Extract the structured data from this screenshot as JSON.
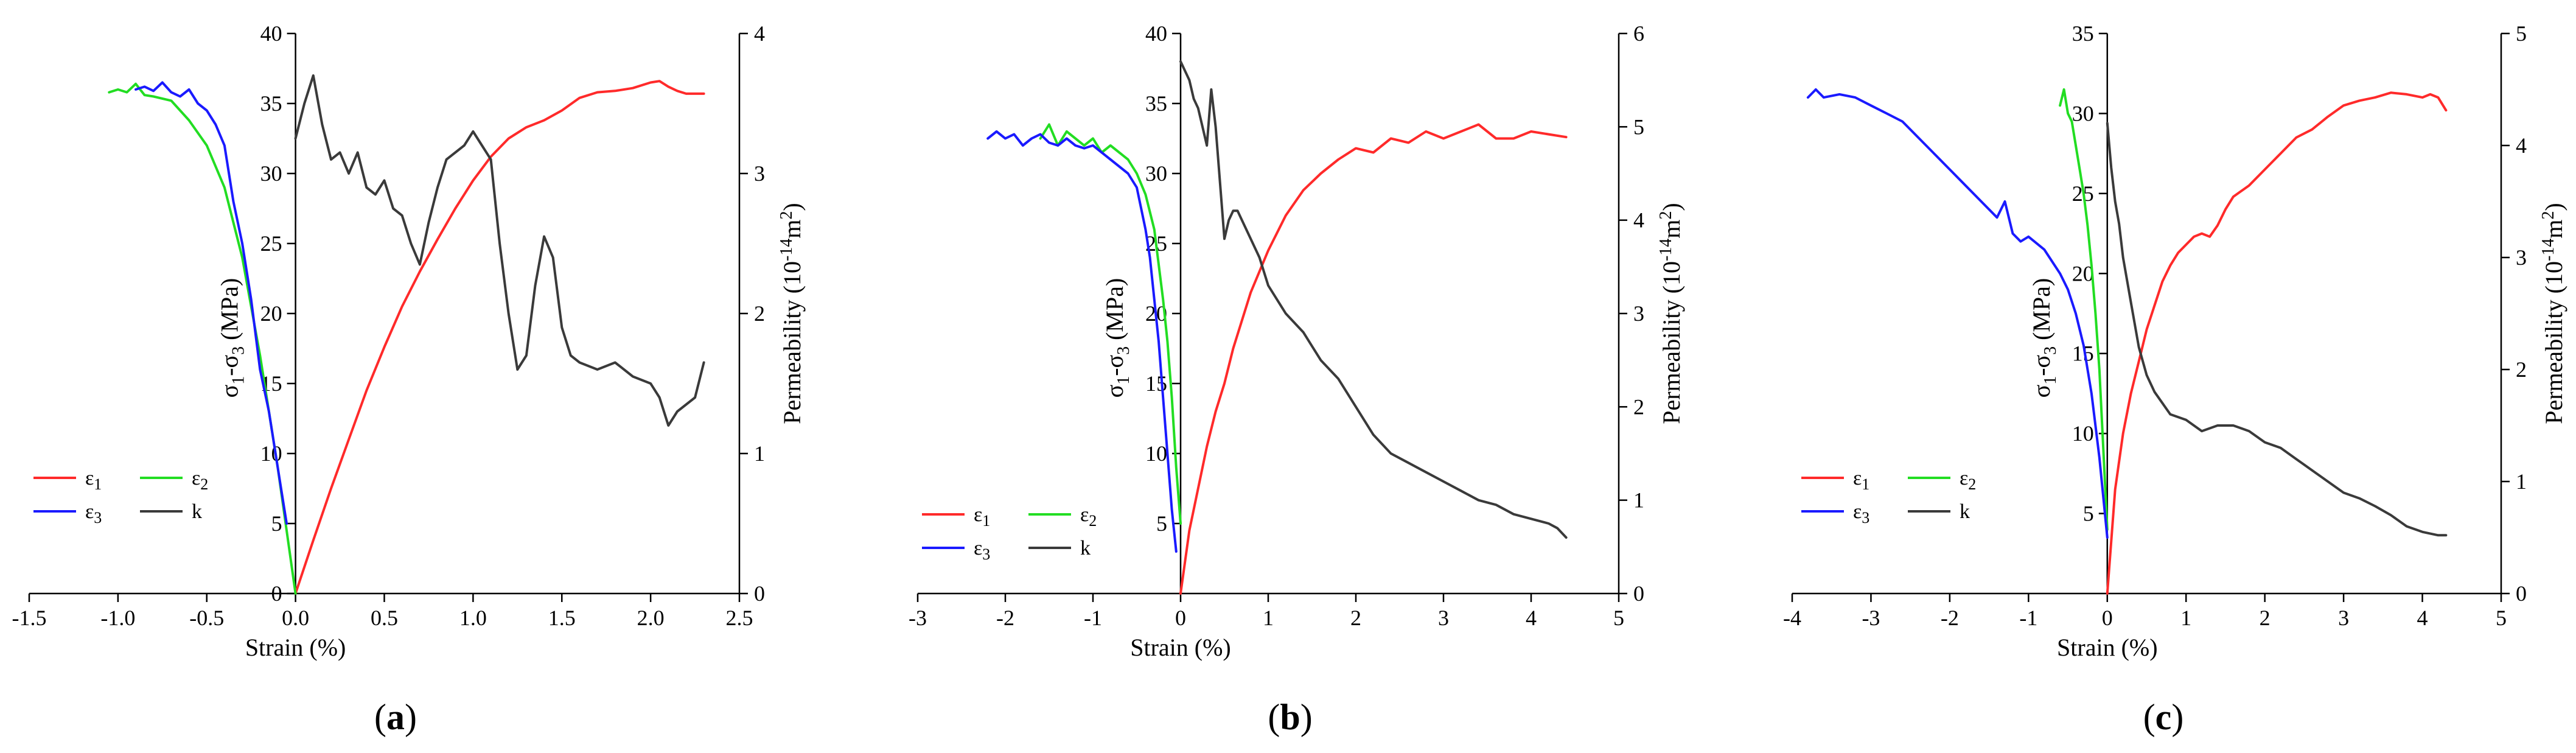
{
  "figure": {
    "panels": [
      {
        "id": "a",
        "label_open": "(",
        "label_letter": "a",
        "label_close": ")"
      },
      {
        "id": "b",
        "label_open": "(",
        "label_letter": "b",
        "label_close": ")"
      },
      {
        "id": "c",
        "label_open": "(",
        "label_letter": "c",
        "label_close": ")"
      }
    ]
  },
  "chart_data": [
    {
      "type": "line",
      "panel": "a",
      "xlabel": "Strain (%)",
      "ylabel_left": {
        "base": "σ",
        "s1": "1",
        "mid": "-σ",
        "s3": "3",
        "unit": " (MPa)"
      },
      "ylabel_right": {
        "pre": "Permeability (10",
        "exp": "-14",
        "post": "m",
        "sq": "2",
        "close": ")"
      },
      "xlim": [
        -1.5,
        2.5
      ],
      "xticks": [
        -1.5,
        -1.0,
        -0.5,
        0.0,
        0.5,
        1.0,
        1.5,
        2.0,
        2.5
      ],
      "xtick_labels": [
        "-1.5",
        "-1.0",
        "-0.5",
        "0.0",
        "0.5",
        "1.0",
        "1.5",
        "2.0",
        "2.5"
      ],
      "ylim_left": [
        0,
        40
      ],
      "yticks_left": [
        0,
        5,
        10,
        15,
        20,
        25,
        30,
        35,
        40
      ],
      "ylim_right": [
        0,
        4
      ],
      "yticks_right": [
        0,
        1,
        2,
        3,
        4
      ],
      "legend": [
        {
          "symbol": "ε",
          "sub": "1",
          "color": "#ff2a2a"
        },
        {
          "symbol": "ε",
          "sub": "2",
          "color": "#22dd22"
        },
        {
          "symbol": "ε",
          "sub": "3",
          "color": "#1a1aff"
        },
        {
          "symbol": "k",
          "sub": "",
          "color": "#3a3a3a"
        }
      ],
      "series": [
        {
          "name": "ε1",
          "color": "#ff2a2a",
          "axis": "left",
          "x": [
            0.0,
            0.1,
            0.2,
            0.3,
            0.4,
            0.5,
            0.6,
            0.7,
            0.8,
            0.9,
            1.0,
            1.1,
            1.2,
            1.3,
            1.4,
            1.5,
            1.6,
            1.7,
            1.8,
            1.9,
            2.0,
            2.05,
            2.1,
            2.15,
            2.2,
            2.3
          ],
          "y": [
            0.0,
            3.8,
            7.5,
            11.0,
            14.5,
            17.6,
            20.5,
            23.0,
            25.3,
            27.5,
            29.5,
            31.2,
            32.5,
            33.3,
            33.8,
            34.5,
            35.4,
            35.8,
            35.9,
            36.1,
            36.5,
            36.6,
            36.2,
            35.9,
            35.7,
            35.7
          ]
        },
        {
          "name": "ε2",
          "color": "#22dd22",
          "axis": "left",
          "x": [
            -1.05,
            -1.0,
            -0.95,
            -0.9,
            -0.85,
            -0.8,
            -0.7,
            -0.6,
            -0.5,
            -0.4,
            -0.35,
            -0.3,
            -0.25,
            -0.2,
            -0.15,
            -0.1,
            -0.05,
            0.0
          ],
          "y": [
            35.8,
            36.0,
            35.8,
            36.4,
            35.6,
            35.5,
            35.2,
            33.8,
            32.0,
            29.0,
            26.5,
            24.0,
            20.5,
            17.0,
            13.0,
            9.0,
            4.5,
            0.0
          ]
        },
        {
          "name": "ε3",
          "color": "#1a1aff",
          "axis": "left",
          "x": [
            -0.9,
            -0.85,
            -0.8,
            -0.75,
            -0.7,
            -0.65,
            -0.6,
            -0.55,
            -0.5,
            -0.45,
            -0.4,
            -0.35,
            -0.3,
            -0.25,
            -0.2,
            -0.15,
            -0.1,
            -0.05
          ],
          "y": [
            36.0,
            36.2,
            35.9,
            36.5,
            35.8,
            35.5,
            36.0,
            35.0,
            34.5,
            33.5,
            32.0,
            28.0,
            25.0,
            21.0,
            16.0,
            13.0,
            9.0,
            5.0
          ]
        },
        {
          "name": "k",
          "color": "#3a3a3a",
          "axis": "right",
          "x": [
            0.0,
            0.05,
            0.1,
            0.15,
            0.2,
            0.25,
            0.3,
            0.35,
            0.4,
            0.45,
            0.5,
            0.55,
            0.6,
            0.65,
            0.7,
            0.75,
            0.8,
            0.85,
            0.9,
            0.95,
            1.0,
            1.05,
            1.1,
            1.15,
            1.2,
            1.25,
            1.3,
            1.35,
            1.4,
            1.45,
            1.5,
            1.55,
            1.6,
            1.7,
            1.8,
            1.9,
            2.0,
            2.05,
            2.1,
            2.15,
            2.2,
            2.25,
            2.3
          ],
          "y": [
            3.25,
            3.5,
            3.7,
            3.35,
            3.1,
            3.15,
            3.0,
            3.15,
            2.9,
            2.85,
            2.95,
            2.75,
            2.7,
            2.5,
            2.35,
            2.65,
            2.9,
            3.1,
            3.15,
            3.2,
            3.3,
            3.2,
            3.1,
            2.5,
            2.0,
            1.6,
            1.7,
            2.2,
            2.55,
            2.4,
            1.9,
            1.7,
            1.65,
            1.6,
            1.65,
            1.55,
            1.5,
            1.4,
            1.2,
            1.3,
            1.35,
            1.4,
            1.65
          ]
        }
      ]
    },
    {
      "type": "line",
      "panel": "b",
      "xlabel": "Strain (%)",
      "ylabel_left": {
        "base": "σ",
        "s1": "1",
        "mid": "-σ",
        "s3": "3",
        "unit": " (MPa)"
      },
      "ylabel_right": {
        "pre": "Permeability (10",
        "exp": "-14",
        "post": "m",
        "sq": "2",
        "close": ")"
      },
      "xlim": [
        -3,
        5
      ],
      "xticks": [
        -3,
        -2,
        -1,
        0,
        1,
        2,
        3,
        4,
        5
      ],
      "xtick_labels": [
        "-3",
        "-2",
        "-1",
        "0",
        "1",
        "2",
        "3",
        "4",
        "5"
      ],
      "ylim_left": [
        0,
        40
      ],
      "yticks_left": [
        5,
        10,
        15,
        20,
        25,
        30,
        35,
        40
      ],
      "ylim_right": [
        0,
        6
      ],
      "yticks_right": [
        0,
        1,
        2,
        3,
        4,
        5,
        6
      ],
      "legend": [
        {
          "symbol": "ε",
          "sub": "1",
          "color": "#ff2a2a"
        },
        {
          "symbol": "ε",
          "sub": "2",
          "color": "#22dd22"
        },
        {
          "symbol": "ε",
          "sub": "3",
          "color": "#1a1aff"
        },
        {
          "symbol": "k",
          "sub": "",
          "color": "#3a3a3a"
        }
      ],
      "series": [
        {
          "name": "ε1",
          "color": "#ff2a2a",
          "axis": "left",
          "x": [
            0.0,
            0.1,
            0.2,
            0.3,
            0.4,
            0.5,
            0.6,
            0.7,
            0.8,
            0.9,
            1.0,
            1.2,
            1.4,
            1.6,
            1.8,
            2.0,
            2.2,
            2.4,
            2.6,
            2.8,
            3.0,
            3.2,
            3.4,
            3.6,
            3.8,
            4.0,
            4.2,
            4.4
          ],
          "y": [
            0.0,
            4.5,
            7.5,
            10.5,
            13.0,
            15.0,
            17.5,
            19.5,
            21.5,
            23.0,
            24.5,
            27.0,
            28.8,
            30.0,
            31.0,
            31.8,
            31.5,
            32.5,
            32.2,
            33.0,
            32.5,
            33.0,
            33.5,
            32.5,
            32.5,
            33.0,
            32.8,
            32.6
          ]
        },
        {
          "name": "ε2",
          "color": "#22dd22",
          "axis": "left",
          "x": [
            -1.6,
            -1.5,
            -1.4,
            -1.3,
            -1.2,
            -1.1,
            -1.0,
            -0.9,
            -0.8,
            -0.7,
            -0.6,
            -0.5,
            -0.4,
            -0.3,
            -0.2,
            -0.15,
            -0.1,
            -0.05,
            0.0
          ],
          "y": [
            32.5,
            33.5,
            32.0,
            33.0,
            32.5,
            32.0,
            32.5,
            31.5,
            32.0,
            31.5,
            31.0,
            30.0,
            28.5,
            26.0,
            21.0,
            18.0,
            14.0,
            9.0,
            5.0
          ]
        },
        {
          "name": "ε3",
          "color": "#1a1aff",
          "axis": "left",
          "x": [
            -2.2,
            -2.1,
            -2.0,
            -1.9,
            -1.8,
            -1.7,
            -1.6,
            -1.5,
            -1.4,
            -1.3,
            -1.2,
            -1.1,
            -1.0,
            -0.9,
            -0.8,
            -0.7,
            -0.6,
            -0.5,
            -0.45,
            -0.4,
            -0.35,
            -0.3,
            -0.25,
            -0.2,
            -0.15,
            -0.1,
            -0.05
          ],
          "y": [
            32.5,
            33.0,
            32.5,
            32.8,
            32.0,
            32.5,
            32.8,
            32.2,
            32.0,
            32.5,
            32.0,
            31.8,
            32.0,
            31.5,
            31.0,
            30.5,
            30.0,
            29.0,
            27.5,
            26.0,
            24.0,
            21.0,
            18.0,
            14.0,
            10.0,
            6.0,
            3.0
          ]
        },
        {
          "name": "k",
          "color": "#3a3a3a",
          "axis": "right",
          "x": [
            0.0,
            0.05,
            0.1,
            0.15,
            0.2,
            0.25,
            0.3,
            0.35,
            0.4,
            0.45,
            0.5,
            0.55,
            0.6,
            0.65,
            0.7,
            0.8,
            0.9,
            1.0,
            1.2,
            1.4,
            1.6,
            1.8,
            2.0,
            2.2,
            2.4,
            2.6,
            2.8,
            3.0,
            3.2,
            3.4,
            3.6,
            3.8,
            4.0,
            4.2,
            4.3,
            4.4
          ],
          "y": [
            5.7,
            5.6,
            5.5,
            5.3,
            5.2,
            5.0,
            4.8,
            5.4,
            5.0,
            4.4,
            3.8,
            4.0,
            4.1,
            4.1,
            4.0,
            3.8,
            3.6,
            3.3,
            3.0,
            2.8,
            2.5,
            2.3,
            2.0,
            1.7,
            1.5,
            1.4,
            1.3,
            1.2,
            1.1,
            1.0,
            0.95,
            0.85,
            0.8,
            0.75,
            0.7,
            0.6
          ]
        }
      ]
    },
    {
      "type": "line",
      "panel": "c",
      "xlabel": "Strain (%)",
      "ylabel_left": {
        "base": "σ",
        "s1": "1",
        "mid": "-σ",
        "s3": "3",
        "unit": " (MPa)"
      },
      "ylabel_right": {
        "pre": "Permeability (10",
        "exp": "-14",
        "post": "m",
        "sq": "2",
        "close": ")"
      },
      "xlim": [
        -4,
        5
      ],
      "xticks": [
        -4,
        -3,
        -2,
        -1,
        0,
        1,
        2,
        3,
        4,
        5
      ],
      "xtick_labels": [
        "-4",
        "-3",
        "-2",
        "-1",
        "0",
        "1",
        "2",
        "3",
        "4",
        "5"
      ],
      "ylim_left": [
        0,
        35
      ],
      "yticks_left": [
        5,
        10,
        15,
        20,
        25,
        30,
        35
      ],
      "ylim_right": [
        0,
        5
      ],
      "yticks_right": [
        0,
        1,
        2,
        3,
        4,
        5
      ],
      "legend": [
        {
          "symbol": "ε",
          "sub": "1",
          "color": "#ff2a2a"
        },
        {
          "symbol": "ε",
          "sub": "2",
          "color": "#22dd22"
        },
        {
          "symbol": "ε",
          "sub": "3",
          "color": "#1a1aff"
        },
        {
          "symbol": "k",
          "sub": "",
          "color": "#3a3a3a"
        }
      ],
      "series": [
        {
          "name": "ε1",
          "color": "#ff2a2a",
          "axis": "left",
          "x": [
            0.0,
            0.1,
            0.2,
            0.3,
            0.4,
            0.5,
            0.6,
            0.7,
            0.8,
            0.9,
            1.0,
            1.1,
            1.2,
            1.3,
            1.4,
            1.5,
            1.6,
            1.8,
            2.0,
            2.2,
            2.4,
            2.6,
            2.8,
            3.0,
            3.2,
            3.4,
            3.6,
            3.8,
            4.0,
            4.1,
            4.2,
            4.3
          ],
          "y": [
            0.0,
            6.5,
            10.0,
            12.5,
            14.5,
            16.5,
            18.0,
            19.5,
            20.5,
            21.3,
            21.8,
            22.3,
            22.5,
            22.3,
            23.0,
            24.0,
            24.8,
            25.5,
            26.5,
            27.5,
            28.5,
            29.0,
            29.8,
            30.5,
            30.8,
            31.0,
            31.3,
            31.2,
            31.0,
            31.2,
            31.0,
            30.2
          ]
        },
        {
          "name": "ε2",
          "color": "#22dd22",
          "axis": "left",
          "x": [
            -0.6,
            -0.55,
            -0.5,
            -0.45,
            -0.4,
            -0.35,
            -0.3,
            -0.25,
            -0.2,
            -0.15,
            -0.1,
            -0.05,
            0.0
          ],
          "y": [
            30.5,
            31.5,
            30.0,
            29.5,
            28.0,
            26.5,
            25.0,
            23.0,
            20.5,
            17.5,
            14.0,
            9.0,
            4.0
          ]
        },
        {
          "name": "ε3",
          "color": "#1a1aff",
          "axis": "left",
          "x": [
            -3.8,
            -3.7,
            -3.6,
            -3.4,
            -3.2,
            -3.0,
            -2.8,
            -2.6,
            -2.4,
            -2.2,
            -2.0,
            -1.8,
            -1.6,
            -1.4,
            -1.3,
            -1.2,
            -1.1,
            -1.0,
            -0.8,
            -0.6,
            -0.5,
            -0.4,
            -0.3,
            -0.2,
            -0.1,
            0.0
          ],
          "y": [
            31.0,
            31.5,
            31.0,
            31.2,
            31.0,
            30.5,
            30.0,
            29.5,
            28.5,
            27.5,
            26.5,
            25.5,
            24.5,
            23.5,
            24.5,
            22.5,
            22.0,
            22.3,
            21.5,
            20.0,
            19.0,
            17.5,
            15.5,
            12.5,
            8.5,
            3.5
          ]
        },
        {
          "name": "k",
          "color": "#3a3a3a",
          "axis": "right",
          "x": [
            0.0,
            0.05,
            0.1,
            0.15,
            0.2,
            0.3,
            0.4,
            0.5,
            0.6,
            0.8,
            1.0,
            1.2,
            1.4,
            1.6,
            1.8,
            2.0,
            2.2,
            2.4,
            2.6,
            2.8,
            3.0,
            3.2,
            3.4,
            3.6,
            3.8,
            4.0,
            4.2,
            4.3
          ],
          "y": [
            4.2,
            3.8,
            3.5,
            3.3,
            3.0,
            2.6,
            2.2,
            1.95,
            1.8,
            1.6,
            1.55,
            1.45,
            1.5,
            1.5,
            1.45,
            1.35,
            1.3,
            1.2,
            1.1,
            1.0,
            0.9,
            0.85,
            0.78,
            0.7,
            0.6,
            0.55,
            0.52,
            0.52
          ]
        }
      ]
    }
  ]
}
